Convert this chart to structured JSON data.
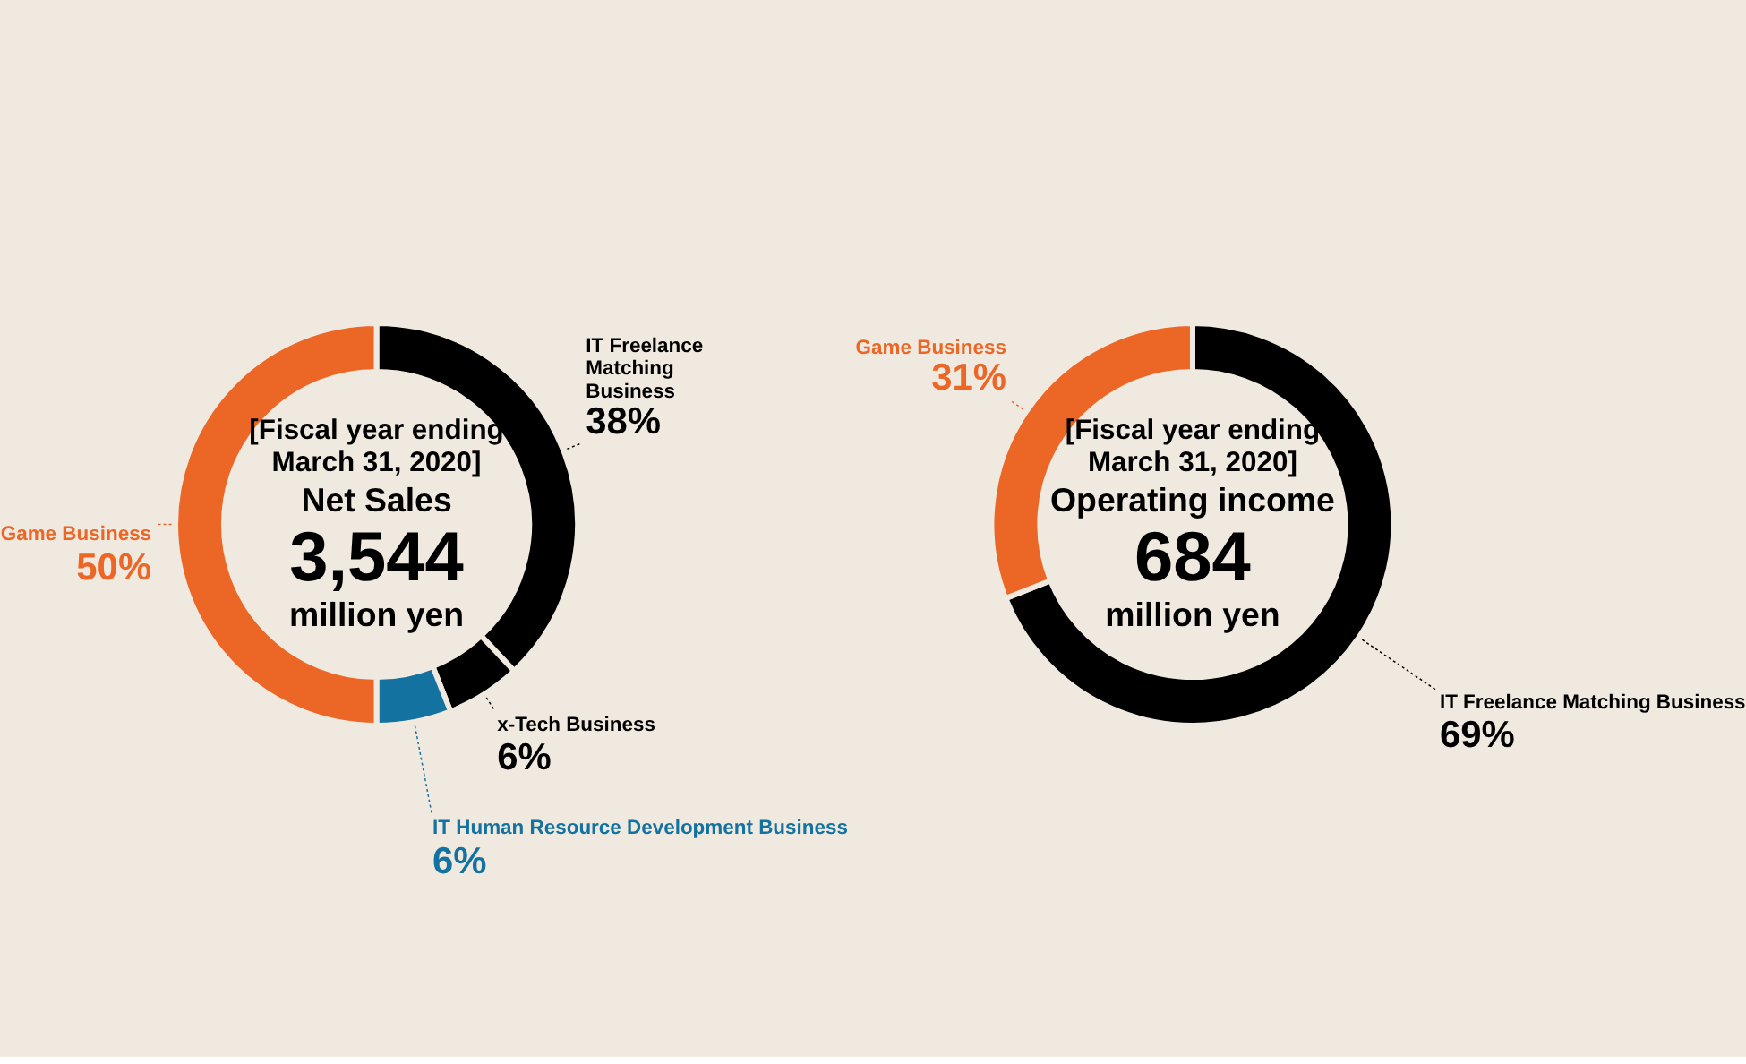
{
  "chart_data": [
    {
      "type": "donut",
      "categories": [
        "IT Freelance Matching Business",
        "x-Tech Business",
        "IT Human Resource Development Business",
        "Game Business"
      ],
      "values": [
        38,
        6,
        6,
        50
      ],
      "colors": [
        "#000000",
        "#000000",
        "#1472a0",
        "#ec6625"
      ],
      "value_labels": [
        "38%",
        "6%",
        "6%",
        "50%"
      ],
      "annotations": [
        "[Fiscal year ending March 31, 2020]",
        "Net Sales",
        "3,544",
        "million yen"
      ],
      "legend": false
    },
    {
      "type": "donut",
      "categories": [
        "IT Freelance Matching Business",
        "Game Business"
      ],
      "values": [
        69,
        31
      ],
      "colors": [
        "#000000",
        "#ec6625"
      ],
      "value_labels": [
        "69%",
        "31%"
      ],
      "annotations": [
        "[Fiscal year ending March 31, 2020]",
        "Operating income",
        "684",
        "million yen"
      ],
      "legend": false
    }
  ]
}
